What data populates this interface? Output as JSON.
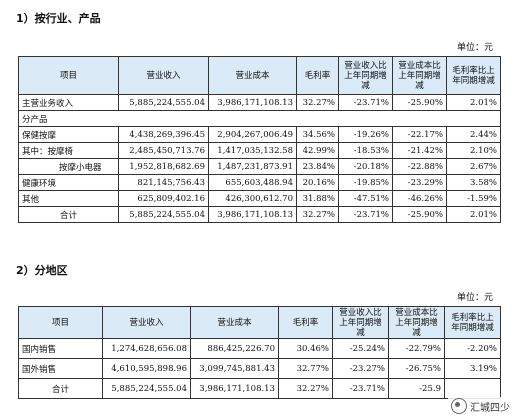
{
  "section1": {
    "title": "1）按行业、产品",
    "unit": "单位：元",
    "headers": [
      "项目",
      "营业收入",
      "营业成本",
      "毛利率",
      "营业收入比上年同期增减",
      "营业成本比上年同期增减",
      "毛利率比上年同期增减"
    ],
    "rows": [
      {
        "name": "主营业务收入",
        "cells": [
          "5,885,224,555.04",
          "3,986,171,108.13",
          "32.27%",
          "-23.71%",
          "-25.90%",
          "2.01%"
        ]
      },
      {
        "name": "分产品",
        "cells": []
      },
      {
        "name": "保健按摩",
        "cells": [
          "4,438,269,396.45",
          "2,904,267,006.49",
          "34.56%",
          "-19.26%",
          "-22.17%",
          "2.44%"
        ]
      },
      {
        "name": "其中：按摩椅",
        "cells": [
          "2,485,450,713.76",
          "1,417,035,132.58",
          "42.99%",
          "-18.53%",
          "-21.42%",
          "2.10%"
        ]
      },
      {
        "name": "按摩小电器",
        "cells": [
          "1,952,818,682.69",
          "1,487,231,873.91",
          "23.84%",
          "-20.18%",
          "-22.88%",
          "2.67%"
        ]
      },
      {
        "name": "健康环境",
        "cells": [
          "821,145,756.43",
          "655,603,488.94",
          "20.16%",
          "-19.85%",
          "-23.29%",
          "3.58%"
        ]
      },
      {
        "name": "其他",
        "cells": [
          "625,809,402.16",
          "426,300,612.70",
          "31.88%",
          "-47.51%",
          "-46.26%",
          "-1.59%"
        ]
      },
      {
        "name": "合计",
        "cells": [
          "5,885,224,555.04",
          "3,986,171,108.13",
          "32.27%",
          "-23.71%",
          "-25.90%",
          "2.01%"
        ]
      }
    ]
  },
  "section2": {
    "title": "2）分地区",
    "unit": "单位：元",
    "headers": [
      "项目",
      "营业收入",
      "营业成本",
      "毛利率",
      "营业收入比上年同期增减",
      "营业成本比上年同期增减",
      "毛利率比上年同期增减"
    ],
    "rows": [
      {
        "name": "国内销售",
        "cells": [
          "1,274,628,656.08",
          "886,425,226.70",
          "30.46%",
          "-25.24%",
          "-22.79%",
          "-2.20%"
        ]
      },
      {
        "name": "国外销售",
        "cells": [
          "4,610,595,898.96",
          "3,099,745,881.43",
          "32.77%",
          "-23.27%",
          "-26.75%",
          "3.19%"
        ]
      },
      {
        "name": "合计",
        "cells": [
          "5,885,224,555.04",
          "3,986,171,108.13",
          "32.27%",
          "-23.71%",
          "-25.9",
          ""
        ]
      }
    ]
  },
  "watermark": {
    "icon": "wechat-icon",
    "text": "汇城四少"
  }
}
